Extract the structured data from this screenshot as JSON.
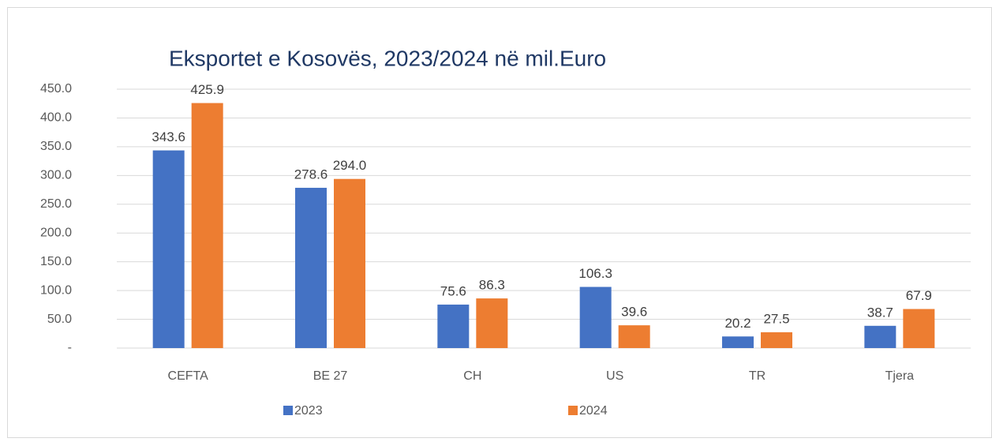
{
  "chart_data": {
    "type": "bar",
    "title": "Eksportet e Kosovës, 2023/2024 në mil.Euro",
    "categories": [
      "CEFTA",
      "BE 27",
      "CH",
      "US",
      "TR",
      "Tjera"
    ],
    "series": [
      {
        "name": "2023",
        "color": "#4472c4",
        "values": [
          343.6,
          278.6,
          75.6,
          106.3,
          20.2,
          38.7
        ],
        "value_labels": [
          "343.6",
          "278.6",
          "75.6",
          "106.3",
          "20.2",
          "38.7"
        ]
      },
      {
        "name": "2024",
        "color": "#ed7d31",
        "values": [
          425.9,
          294.0,
          86.3,
          39.6,
          27.5,
          67.9
        ],
        "value_labels": [
          "425.9",
          "294.0",
          "86.3",
          "39.6",
          "27.5",
          "67.9"
        ]
      }
    ],
    "ylim": [
      0,
      450
    ],
    "yticks": [
      {
        "value": 0,
        "label": "-"
      },
      {
        "value": 50,
        "label": "50.0"
      },
      {
        "value": 100,
        "label": "100.0"
      },
      {
        "value": 150,
        "label": "150.0"
      },
      {
        "value": 200,
        "label": "200.0"
      },
      {
        "value": 250,
        "label": "250.0"
      },
      {
        "value": 300,
        "label": "300.0"
      },
      {
        "value": 350,
        "label": "350.0"
      },
      {
        "value": 400,
        "label": "400.0"
      },
      {
        "value": 450,
        "label": "450.0"
      }
    ],
    "grid": true,
    "legend": "bottom"
  }
}
